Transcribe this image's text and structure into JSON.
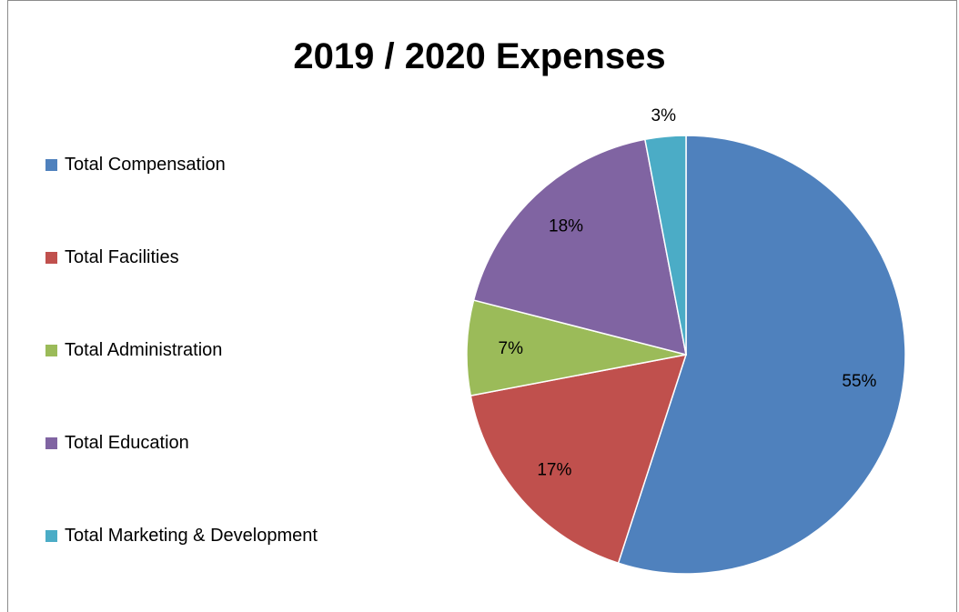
{
  "chart_data": {
    "type": "pie",
    "title": "2019 / 2020 Expenses",
    "legend_position": "left",
    "series": [
      {
        "name": "Total Compensation",
        "value": 55,
        "label": "55%",
        "color": "#4f81bd"
      },
      {
        "name": "Total Facilities",
        "value": 17,
        "label": "17%",
        "color": "#c0504d"
      },
      {
        "name": "Total Administration",
        "value": 7,
        "label": "7%",
        "color": "#9bbb59"
      },
      {
        "name": "Total Education",
        "value": 18,
        "label": "18%",
        "color": "#8064a2"
      },
      {
        "name": "Total Marketing & Development",
        "value": 3,
        "label": "3%",
        "color": "#4bacc6"
      }
    ]
  }
}
